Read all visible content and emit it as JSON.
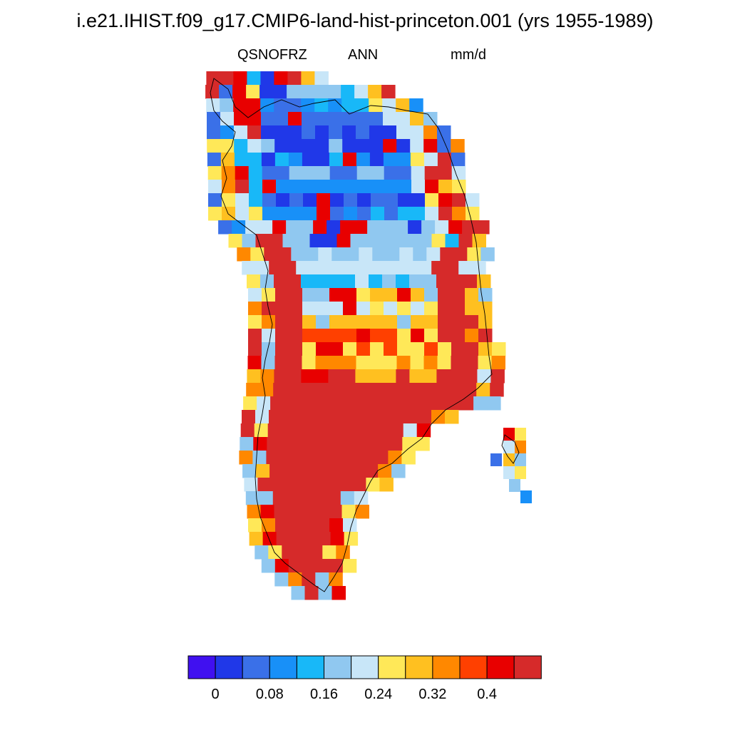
{
  "title": "i.e21.IHIST.f09_g17.CMIP6-land-hist-princeton.001 (yrs 1955-1989)",
  "subtitles": {
    "variable": "QSNOFRZ",
    "period": "ANN",
    "units": "mm/d"
  },
  "colors": {
    "ocean": "#ffffff",
    "coastline": "#000000",
    "palette": [
      "#4010f0",
      "#2038e8",
      "#3a70e8",
      "#1890f8",
      "#18b8f8",
      "#90c8f0",
      "#c8e6f8",
      "#ffe858",
      "#ffc020",
      "#ff8800",
      "#ff4000",
      "#e80000",
      "#d62a2a"
    ]
  },
  "colorbar": {
    "tick_labels": [
      "0",
      "0.08",
      "0.16",
      "0.24",
      "0.32",
      "0.4"
    ]
  }
}
